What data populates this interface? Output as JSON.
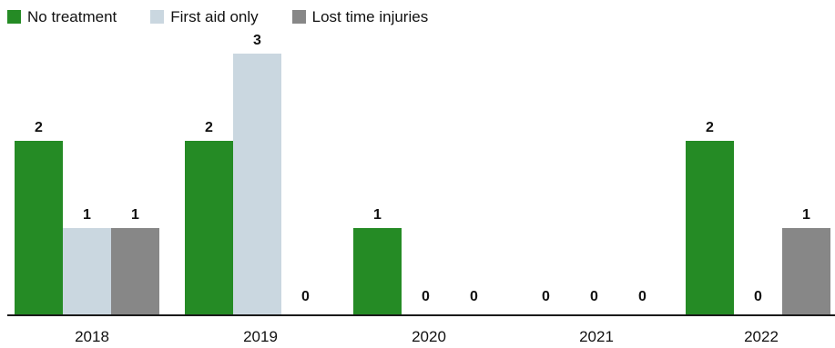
{
  "chart_data": {
    "type": "bar",
    "categories": [
      "2018",
      "2019",
      "2020",
      "2021",
      "2022"
    ],
    "series": [
      {
        "name": "No treatment",
        "values": [
          2,
          2,
          1,
          0,
          2
        ],
        "color": "#258B25"
      },
      {
        "name": "First aid only",
        "values": [
          1,
          3,
          0,
          0,
          0
        ],
        "color": "#CAD7E0"
      },
      {
        "name": "Lost time injuries",
        "values": [
          1,
          0,
          0,
          0,
          1
        ],
        "color": "#878787"
      }
    ],
    "ylim": [
      0,
      3
    ],
    "grid": false,
    "legend": "top-left",
    "data_labels": true
  }
}
